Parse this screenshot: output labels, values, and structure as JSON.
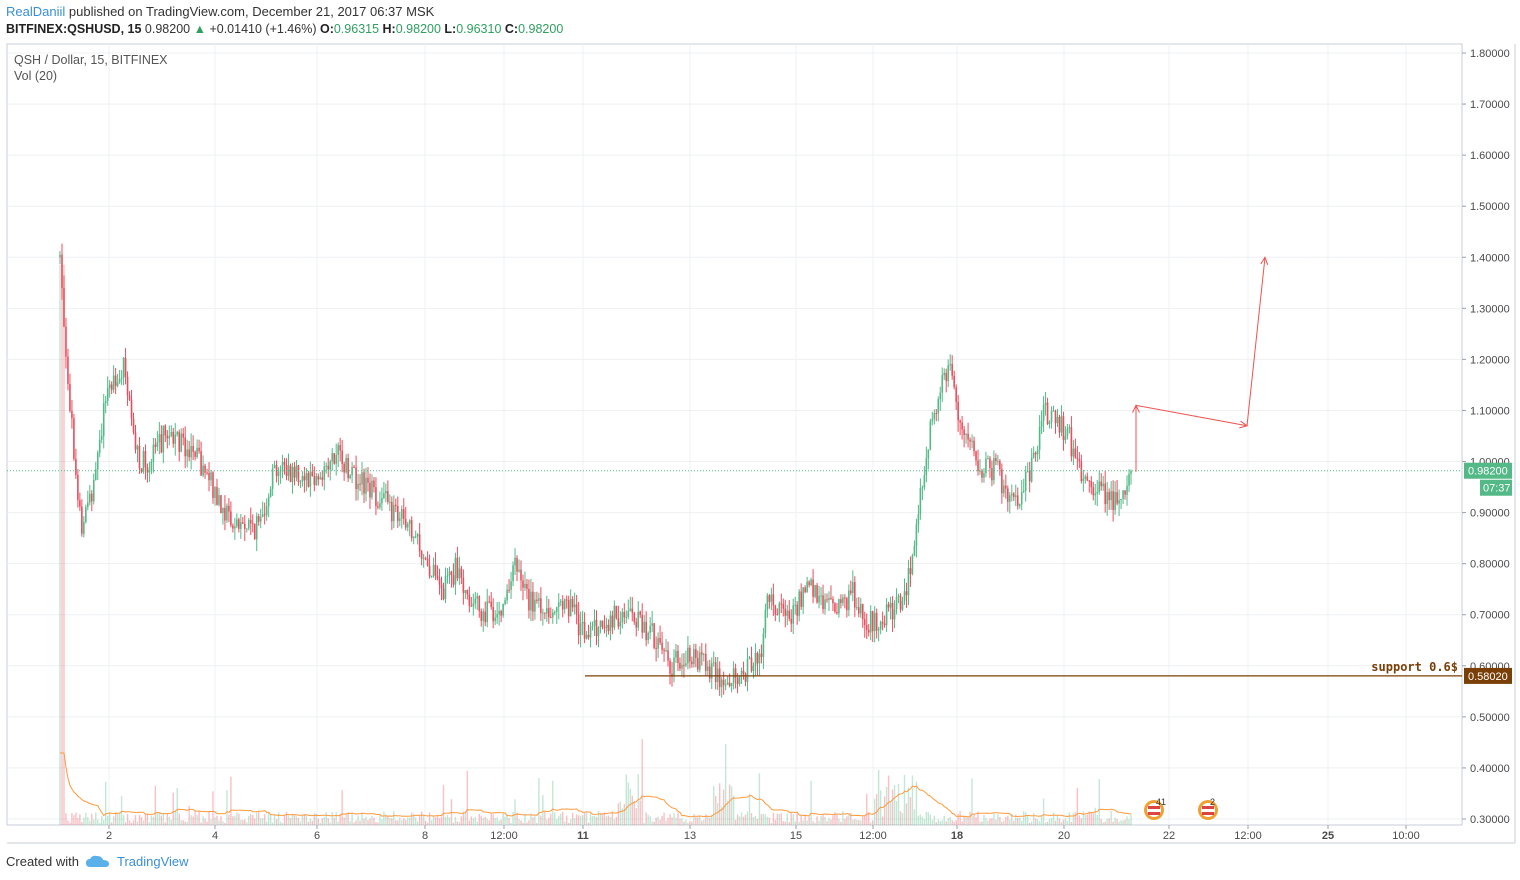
{
  "header": {
    "author": "RealDaniil",
    "published_text": "published on TradingView.com, December 21, 2017 06:37 MSK"
  },
  "symbol_bar": {
    "symbol": "BITFINEX:QSHUSD, 15",
    "last": "0.98200",
    "change": "+0.01410 (+1.46%)",
    "o_label": "O:",
    "o": "0.96315",
    "h_label": "H:",
    "h": "0.98200",
    "l_label": "L:",
    "l": "0.96310",
    "c_label": "C:",
    "c": "0.98200"
  },
  "pane": {
    "title": "QSH / Dollar, 15, BITFINEX",
    "volume_label": "Vol (20)"
  },
  "footer": {
    "created_with": "Created with",
    "brand": "TradingView"
  },
  "colors": {
    "up": "#53b987",
    "down": "#eb4d5c",
    "grid": "#eef0f3",
    "axis_text": "#4a4a4a",
    "last_price_bg": "#53b987",
    "support": "#7a3f06",
    "drawing": "#ef5350",
    "volume_ma": "#ff9a3c"
  },
  "chart_data": {
    "type": "candlestick",
    "y_axis": {
      "range": [
        0.3,
        1.8
      ],
      "ticks": [
        "1.80000",
        "1.70000",
        "1.60000",
        "1.50000",
        "1.40000",
        "1.30000",
        "1.20000",
        "1.10000",
        "1.00000",
        "0.90000",
        "0.80000",
        "0.70000",
        "0.60000",
        "0.50000",
        "0.40000",
        "0.30000"
      ],
      "tick_values": [
        1.8,
        1.7,
        1.6,
        1.5,
        1.4,
        1.3,
        1.2,
        1.1,
        1.0,
        0.9,
        0.8,
        0.7,
        0.6,
        0.5,
        0.4,
        0.3
      ]
    },
    "x_axis": {
      "ticks": [
        {
          "label": "2",
          "bold": false
        },
        {
          "label": "4",
          "bold": false
        },
        {
          "label": "6",
          "bold": false
        },
        {
          "label": "8",
          "bold": false
        },
        {
          "label": "12:00",
          "bold": false
        },
        {
          "label": "11",
          "bold": true
        },
        {
          "label": "13",
          "bold": false
        },
        {
          "label": "15",
          "bold": false
        },
        {
          "label": "12:00",
          "bold": false
        },
        {
          "label": "18",
          "bold": true
        },
        {
          "label": "20",
          "bold": false
        },
        {
          "label": "22",
          "bold": false
        },
        {
          "label": "12:00",
          "bold": false
        },
        {
          "label": "25",
          "bold": true
        },
        {
          "label": "10:00",
          "bold": false
        }
      ]
    },
    "price_path_key_points": [
      [
        0,
        1.4
      ],
      [
        0.003,
        1.3
      ],
      [
        0.01,
        1.1
      ],
      [
        0.02,
        0.86
      ],
      [
        0.03,
        0.95
      ],
      [
        0.045,
        1.15
      ],
      [
        0.06,
        1.18
      ],
      [
        0.07,
        1.02
      ],
      [
        0.08,
        0.99
      ],
      [
        0.1,
        1.06
      ],
      [
        0.12,
        1.03
      ],
      [
        0.14,
        0.96
      ],
      [
        0.16,
        0.88
      ],
      [
        0.185,
        0.87
      ],
      [
        0.2,
        0.99
      ],
      [
        0.22,
        0.98
      ],
      [
        0.24,
        0.97
      ],
      [
        0.26,
        1.01
      ],
      [
        0.28,
        0.96
      ],
      [
        0.3,
        0.93
      ],
      [
        0.32,
        0.88
      ],
      [
        0.34,
        0.82
      ],
      [
        0.355,
        0.74
      ],
      [
        0.37,
        0.79
      ],
      [
        0.39,
        0.71
      ],
      [
        0.41,
        0.71
      ],
      [
        0.425,
        0.79
      ],
      [
        0.44,
        0.72
      ],
      [
        0.46,
        0.71
      ],
      [
        0.475,
        0.72
      ],
      [
        0.49,
        0.66
      ],
      [
        0.51,
        0.69
      ],
      [
        0.53,
        0.7
      ],
      [
        0.55,
        0.67
      ],
      [
        0.57,
        0.6
      ],
      [
        0.585,
        0.63
      ],
      [
        0.6,
        0.61
      ],
      [
        0.615,
        0.57
      ],
      [
        0.63,
        0.58
      ],
      [
        0.645,
        0.6
      ],
      [
        0.655,
        0.62
      ],
      [
        0.66,
        0.73
      ],
      [
        0.68,
        0.7
      ],
      [
        0.7,
        0.75
      ],
      [
        0.72,
        0.71
      ],
      [
        0.74,
        0.74
      ],
      [
        0.755,
        0.68
      ],
      [
        0.77,
        0.7
      ],
      [
        0.785,
        0.72
      ],
      [
        0.795,
        0.79
      ],
      [
        0.805,
        0.96
      ],
      [
        0.815,
        1.1
      ],
      [
        0.83,
        1.18
      ],
      [
        0.845,
        1.05
      ],
      [
        0.86,
        0.99
      ],
      [
        0.875,
        0.98
      ],
      [
        0.89,
        0.91
      ],
      [
        0.905,
        0.98
      ],
      [
        0.92,
        1.1
      ],
      [
        0.94,
        1.06
      ],
      [
        0.955,
        0.97
      ],
      [
        0.97,
        0.95
      ],
      [
        0.985,
        0.92
      ],
      [
        1.0,
        0.96
      ]
    ],
    "last_price": {
      "value": 0.982,
      "label": "0.98200",
      "countdown": "07:37"
    },
    "support": {
      "value": 0.5802,
      "label": "0.58020",
      "text": "support 0.6$"
    },
    "projection": [
      {
        "x": "last",
        "y": 0.98
      },
      {
        "x": "last",
        "y": 1.11
      },
      {
        "x": "mid",
        "y": 1.07
      },
      {
        "x": "target",
        "y": 1.4
      }
    ],
    "volume": {
      "label": "Vol (20)",
      "ma_color": "#ff9a3c"
    },
    "event_badges": [
      {
        "count": "41"
      },
      {
        "count": "2"
      }
    ]
  }
}
